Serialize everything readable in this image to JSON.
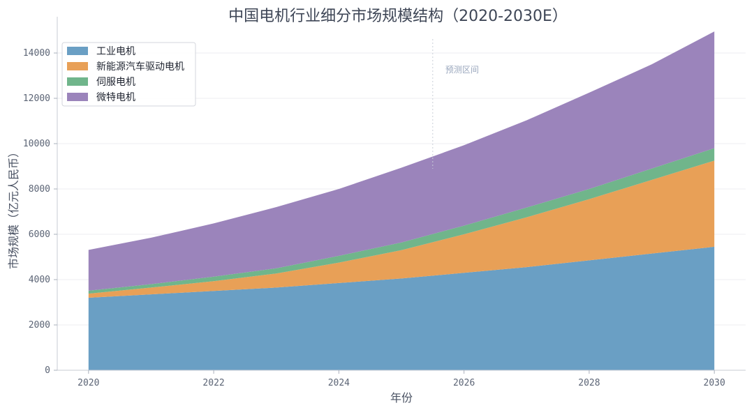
{
  "chart_data": {
    "type": "area",
    "stacked": true,
    "title": "中国电机行业细分市场规模结构（2020-2030E）",
    "xlabel": "年份",
    "ylabel": "市场规模（亿元人民币）",
    "x": [
      2020,
      2021,
      2022,
      2023,
      2024,
      2025,
      2026,
      2027,
      2028,
      2029,
      2030
    ],
    "x_ticks": [
      "2020",
      "2022",
      "2024",
      "2026",
      "2028",
      "2030"
    ],
    "y_ticks": [
      "0",
      "2000",
      "4000",
      "6000",
      "8000",
      "10000",
      "12000",
      "14000"
    ],
    "xlim": [
      2019.5,
      2030.5
    ],
    "ylim": [
      0,
      15600
    ],
    "grid": "horizontal",
    "legend_position": "top-left",
    "forecast_line_x": 2025.5,
    "forecast_label": "预测区间",
    "series": [
      {
        "name": "工业电机",
        "color": "#6a9fc4",
        "values": [
          3200,
          3350,
          3500,
          3650,
          3850,
          4050,
          4300,
          4550,
          4850,
          5150,
          5450
        ]
      },
      {
        "name": "新能源汽车驱动电机",
        "color": "#e8a057",
        "values": [
          180,
          300,
          430,
          620,
          900,
          1250,
          1700,
          2200,
          2700,
          3250,
          3800
        ]
      },
      {
        "name": "伺服电机",
        "color": "#70b58b",
        "values": [
          130,
          150,
          200,
          230,
          300,
          340,
          380,
          430,
          450,
          500,
          550
        ]
      },
      {
        "name": "微特电机",
        "color": "#9b84bb",
        "values": [
          1800,
          2050,
          2350,
          2700,
          2950,
          3300,
          3550,
          3850,
          4250,
          4600,
          5150
        ]
      }
    ]
  }
}
